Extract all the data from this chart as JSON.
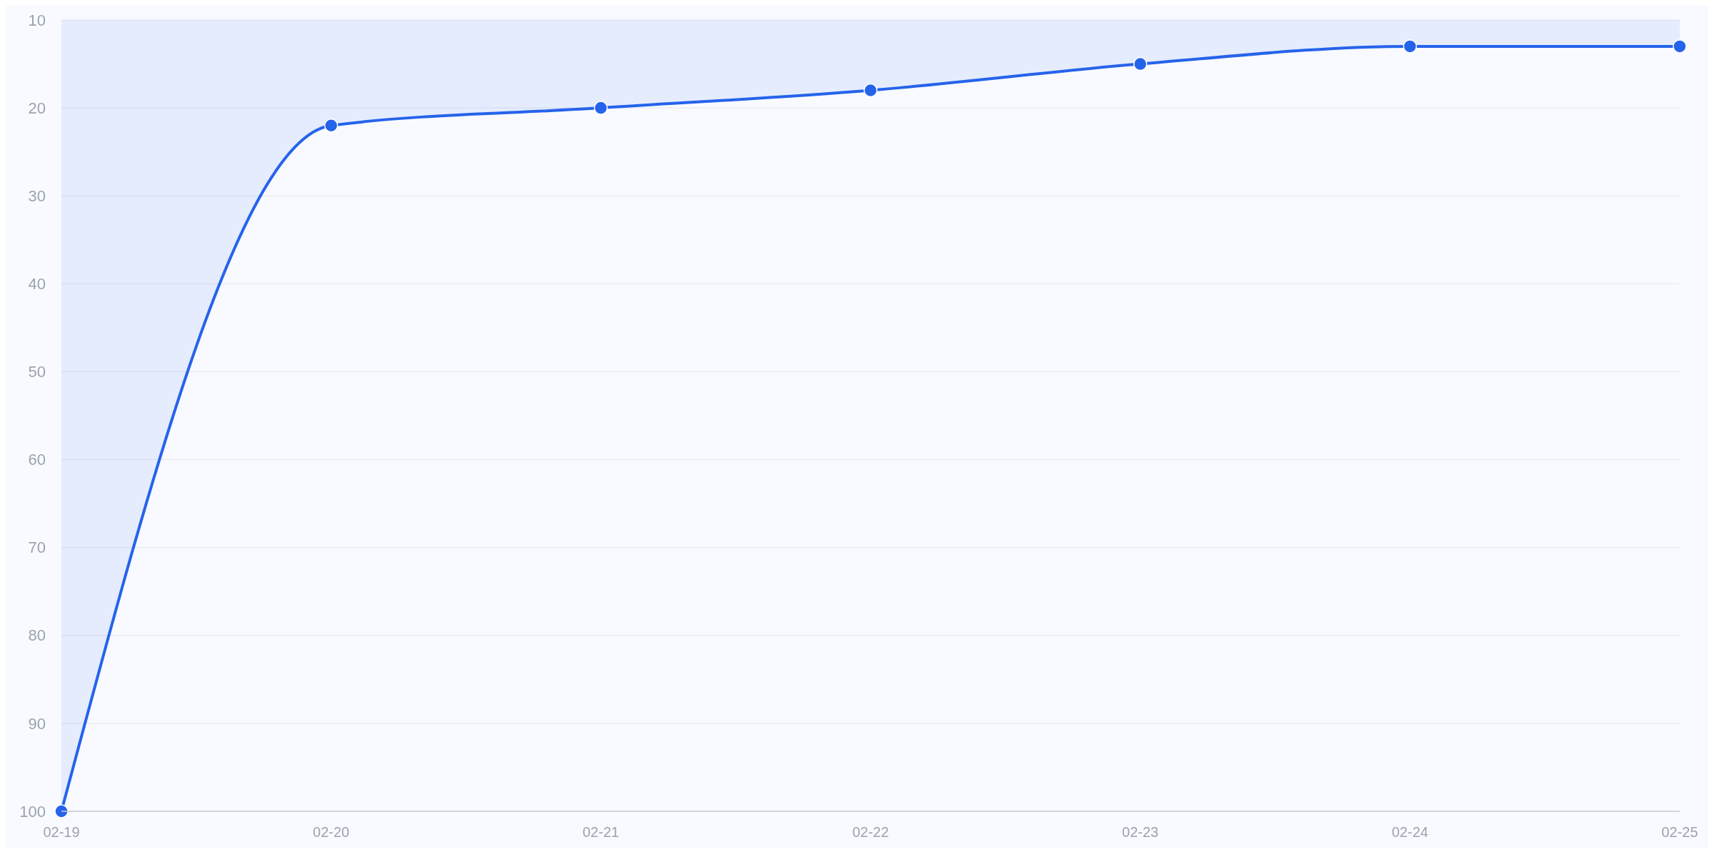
{
  "chart_data": {
    "type": "area",
    "categories": [
      "02-19",
      "02-20",
      "02-21",
      "02-22",
      "02-23",
      "02-24",
      "02-25"
    ],
    "series": [
      {
        "color": "#2563eb",
        "values": [
          100,
          22,
          20,
          18,
          15,
          13,
          13
        ]
      }
    ],
    "ylim": [
      100,
      10
    ],
    "yticks": [
      10,
      20,
      30,
      40,
      50,
      60,
      70,
      80,
      90,
      100
    ],
    "grid": "y",
    "marker": "circle",
    "line_style": "solid"
  }
}
